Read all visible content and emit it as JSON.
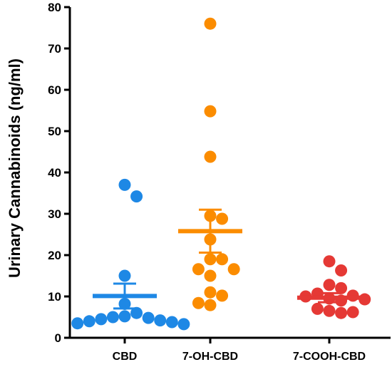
{
  "chart_data": {
    "type": "scatter",
    "ylabel": "Urinary Cannabinoids (ng/ml)",
    "xlabel": "",
    "ylim": [
      0,
      80
    ],
    "yticks": [
      "0",
      "10",
      "20",
      "30",
      "40",
      "50",
      "60",
      "70",
      "80"
    ],
    "categories": [
      "CBD",
      "7-OH-CBD",
      "7-COOH-CBD"
    ],
    "series": [
      {
        "category": "CBD",
        "color": "#1E88E5",
        "mean": 10.1,
        "sem_upper": 13.1,
        "sem_lower": 7.1,
        "points": [
          37,
          34.2,
          15,
          8.2,
          6,
          5.2,
          5,
          4.8,
          4.5,
          4.2,
          4.0,
          3.8,
          3.5,
          3.3
        ]
      },
      {
        "category": "7-OH-CBD",
        "color": "#FB8C00",
        "mean": 25.8,
        "sem_upper": 31,
        "sem_lower": 20.6,
        "points": [
          76,
          54.8,
          43.8,
          29.5,
          28.8,
          23.8,
          19,
          19,
          16.6,
          16.6,
          15,
          11,
          10.2,
          8.4,
          7.9
        ]
      },
      {
        "category": "7-COOH-CBD",
        "color": "#E53935",
        "mean": 9.7,
        "sem_upper": 10.8,
        "sem_lower": 8.6,
        "points": [
          18.5,
          16.3,
          12.8,
          12,
          10.7,
          10.2,
          10,
          9.5,
          9.3,
          9,
          7,
          6.5,
          6.2,
          6.0
        ]
      }
    ]
  }
}
